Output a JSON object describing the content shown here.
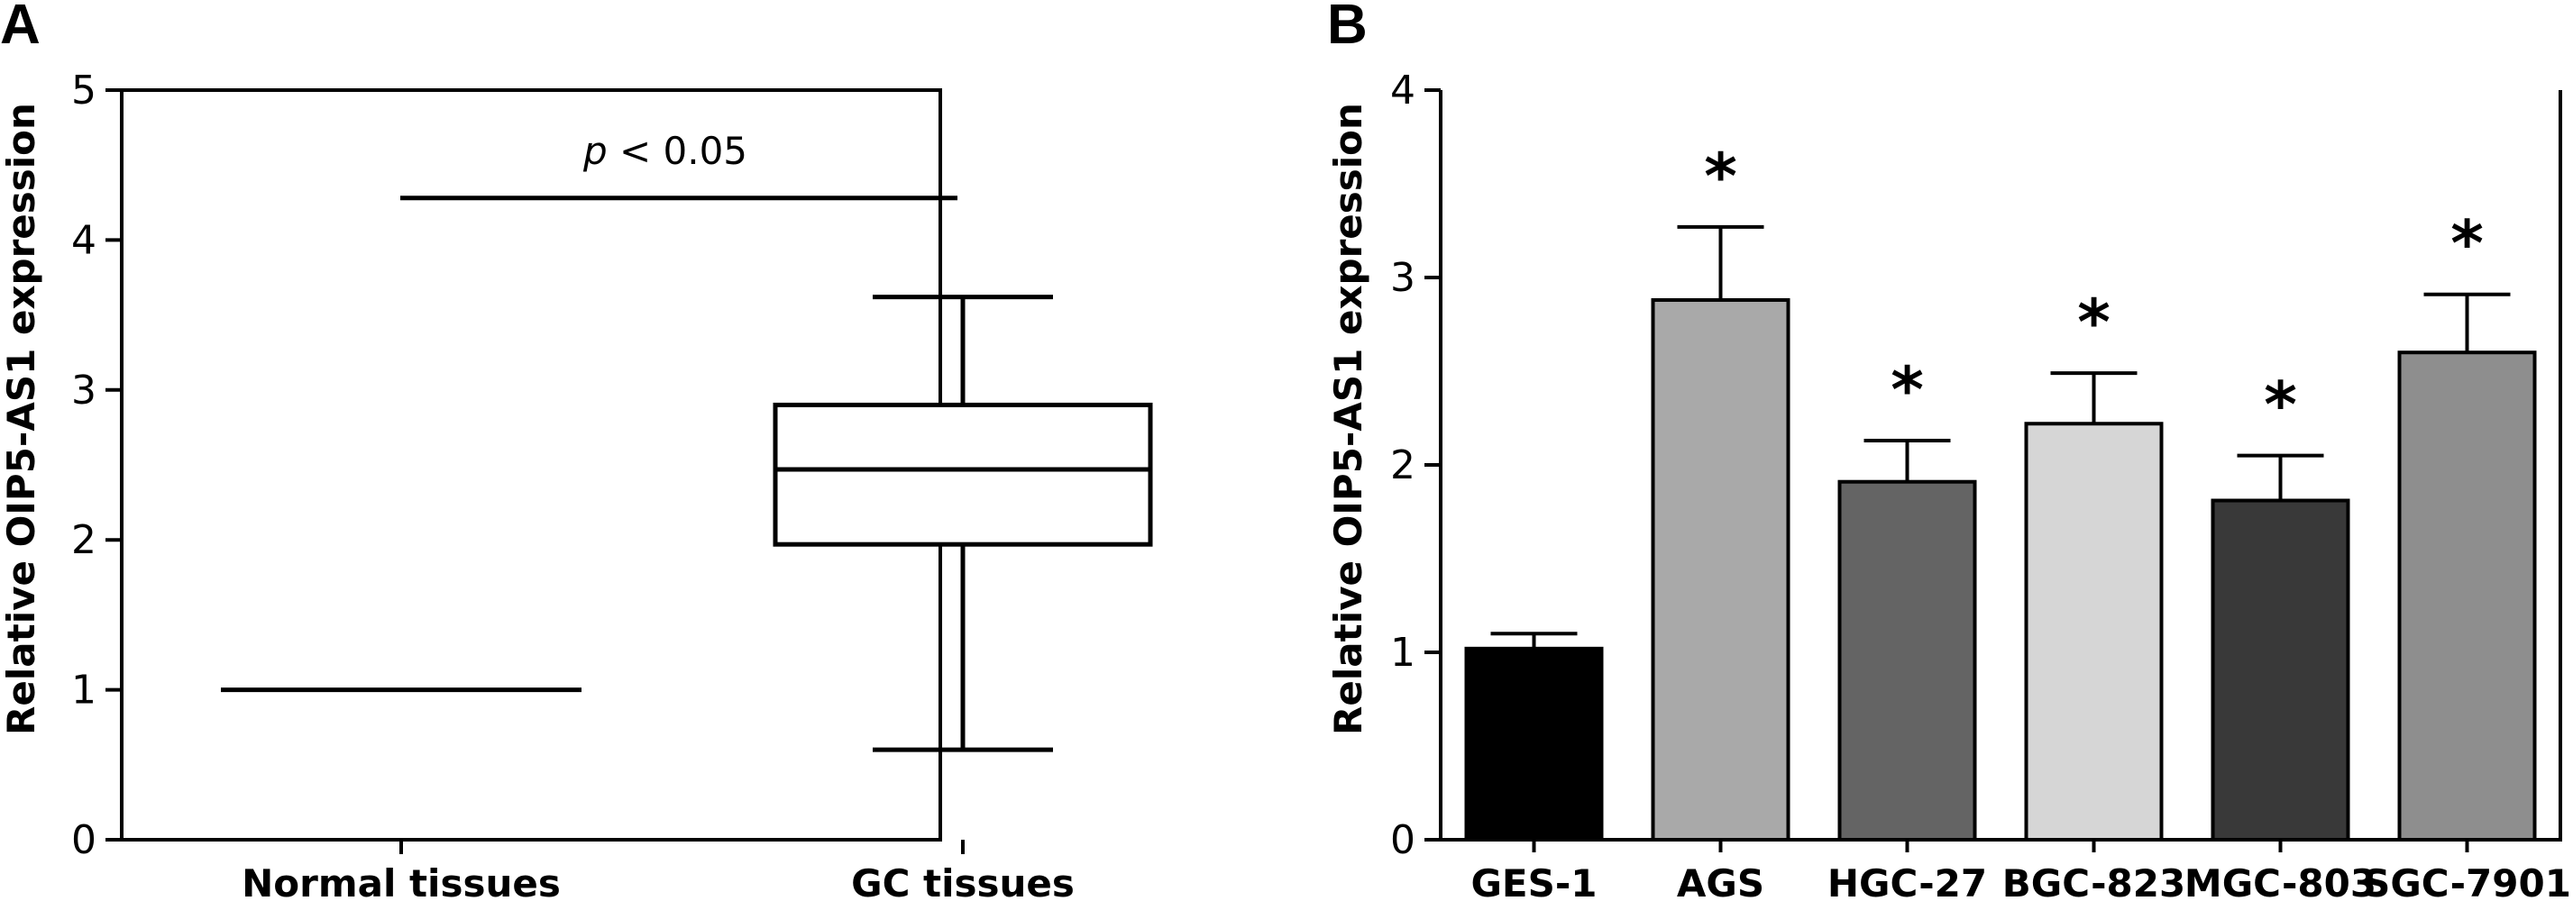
{
  "chart_data": [
    {
      "panel": "A",
      "type": "box",
      "ylabel": "Relative OIP5-AS1 expression",
      "ylim": [
        0,
        5
      ],
      "yticks": [
        0,
        1,
        2,
        3,
        4,
        5
      ],
      "categories": [
        "Normal tissues",
        "GC tissues"
      ],
      "boxes": [
        {
          "min": 1,
          "q1": 1,
          "median": 1,
          "q3": 1,
          "max": 1
        },
        {
          "min": 0.6,
          "q1": 1.97,
          "median": 2.47,
          "q3": 2.9,
          "max": 3.62
        }
      ],
      "annotation": {
        "text_italic": "p",
        "text": " < 0.05",
        "y": 4.28
      },
      "colors": {
        "stroke": "#000000",
        "fill": "#ffffff"
      }
    },
    {
      "panel": "B",
      "type": "bar",
      "ylabel": "Relative OIP5-AS1 expression",
      "ylim": [
        0,
        4
      ],
      "yticks": [
        0,
        1,
        2,
        3,
        4
      ],
      "categories": [
        "GES-1",
        "AGS",
        "HGC-27",
        "BGC-823",
        "MGC-803",
        "SGC-7901"
      ],
      "values": [
        1.02,
        2.88,
        1.91,
        2.22,
        1.81,
        2.6
      ],
      "errors": [
        0.08,
        0.39,
        0.22,
        0.27,
        0.24,
        0.31
      ],
      "significance": [
        "",
        "*",
        "*",
        "*",
        "*",
        "*"
      ],
      "colors": [
        "#000000",
        "#a9a9a9",
        "#646464",
        "#d6d6d6",
        "#393939",
        "#8e8e8e"
      ]
    }
  ]
}
